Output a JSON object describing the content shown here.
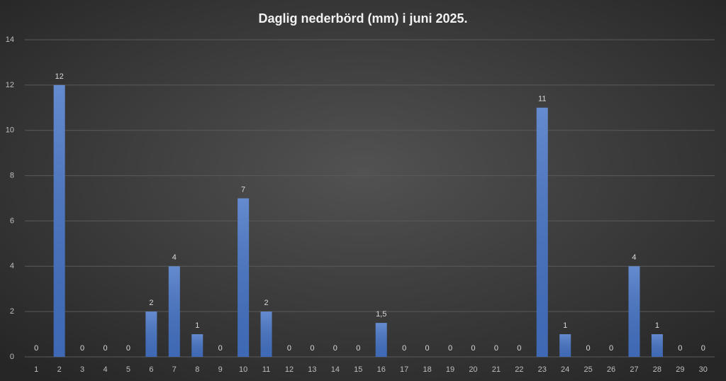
{
  "chart_data": {
    "type": "bar",
    "title": "Daglig nederbörd (mm) i juni 2025.",
    "categories": [
      "1",
      "2",
      "3",
      "4",
      "5",
      "6",
      "7",
      "8",
      "9",
      "10",
      "11",
      "12",
      "13",
      "14",
      "15",
      "16",
      "17",
      "18",
      "19",
      "20",
      "21",
      "22",
      "23",
      "24",
      "25",
      "26",
      "27",
      "28",
      "29",
      "30"
    ],
    "values": [
      0,
      12,
      0,
      0,
      0,
      2,
      4,
      1,
      0,
      7,
      2,
      0,
      0,
      0,
      0,
      1.5,
      0,
      0,
      0,
      0,
      0,
      0,
      11,
      1,
      0,
      0,
      4,
      1,
      0,
      0
    ],
    "value_labels": [
      "0",
      "12",
      "0",
      "0",
      "0",
      "2",
      "4",
      "1",
      "0",
      "7",
      "2",
      "0",
      "0",
      "0",
      "0",
      "1,5",
      "0",
      "0",
      "0",
      "0",
      "0",
      "0",
      "11",
      "1",
      "0",
      "0",
      "4",
      "1",
      "0",
      "0"
    ],
    "color": "#4472c4",
    "ylim": [
      0,
      14
    ],
    "yticks": [
      0,
      2,
      4,
      6,
      8,
      10,
      12,
      14
    ],
    "grid": true
  }
}
